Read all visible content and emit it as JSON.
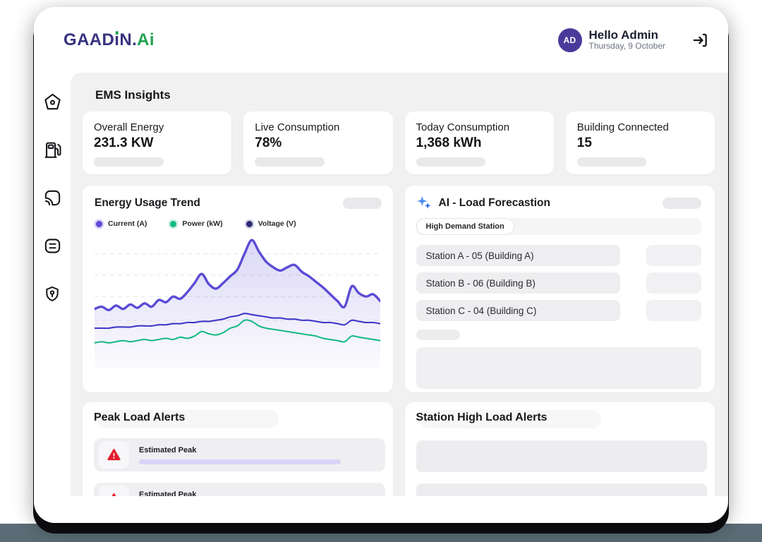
{
  "brand": {
    "parts": [
      "GAAD",
      "i",
      "N.",
      "Ai"
    ]
  },
  "header": {
    "avatar_initials": "AD",
    "greeting": "Hello Admin",
    "date": "Thursday, 9 October"
  },
  "sidebar": {
    "icons": [
      "home",
      "ev-charger",
      "cast",
      "checklist",
      "security"
    ]
  },
  "page_title": "EMS Insights",
  "stats": [
    {
      "label": "Overall Energy",
      "value": "231.3 KW"
    },
    {
      "label": "Live Consumption",
      "value": "78%"
    },
    {
      "label": "Today Consumption",
      "value": "1,368 kWh"
    },
    {
      "label": "Building Connected",
      "value": "15"
    }
  ],
  "chart_card": {
    "title": "Energy Usage Trend"
  },
  "chart_data": {
    "type": "area",
    "title": "Energy Usage Trend",
    "xlabel": "",
    "ylabel": "",
    "ylim": [
      0,
      100
    ],
    "axes_tick_labels_visible": false,
    "grid": "dashed-horizontal",
    "grid_levels": [
      86,
      67,
      48,
      27
    ],
    "legend_position": "top-left",
    "legend_items": [
      {
        "label": "Current (A)",
        "color": "#5b4bd5"
      },
      {
        "label": "Power (kW)",
        "color": "#10b981"
      },
      {
        "label": "Voltage (V)",
        "color": "#2e2a72"
      }
    ],
    "series": [
      {
        "name": "Current (A)",
        "color": "#5b4bd5",
        "fill": true,
        "values": [
          37,
          39,
          36,
          40,
          37,
          41,
          38,
          42,
          39,
          45,
          43,
          48,
          46,
          52,
          60,
          68,
          59,
          55,
          60,
          66,
          72,
          86,
          98,
          88,
          79,
          74,
          71,
          74,
          76,
          70,
          66,
          61,
          56,
          50,
          44,
          39,
          57,
          51,
          48,
          50,
          44
        ]
      },
      {
        "name": "Voltage (V)",
        "color": "#4038c7",
        "fill": false,
        "values": [
          20,
          20,
          20,
          21,
          21,
          21,
          22,
          22,
          22,
          23,
          23,
          24,
          24,
          25,
          25,
          26,
          26,
          27,
          28,
          30,
          31,
          33,
          32,
          31,
          30,
          29,
          29,
          28,
          28,
          27,
          27,
          26,
          25,
          25,
          24,
          23,
          27,
          26,
          25,
          25,
          24
        ]
      },
      {
        "name": "Power (kW)",
        "color": "#10b981",
        "fill": false,
        "values": [
          7,
          8,
          7,
          8,
          9,
          8,
          9,
          10,
          9,
          10,
          11,
          10,
          12,
          11,
          13,
          17,
          15,
          14,
          16,
          20,
          22,
          27,
          26,
          22,
          20,
          19,
          18,
          17,
          16,
          15,
          14,
          13,
          11,
          10,
          9,
          8,
          13,
          12,
          11,
          10,
          9
        ]
      }
    ]
  },
  "forecast": {
    "title": "AI - Load Forecastion",
    "chip": "High Demand Station",
    "stations": [
      "Station A - 05 (Building A)",
      "Station B - 06 (Building B)",
      "Station C - 04 (Building C)"
    ]
  },
  "peak_alerts": {
    "title": "Peak Load Alerts",
    "items": [
      {
        "label": "Estimated Peak"
      },
      {
        "label": "Estimated Peak"
      }
    ]
  },
  "station_alerts": {
    "title": "Station High Load Alerts"
  },
  "colors": {
    "logo_indigo": "#38327f",
    "logo_green": "#21a24e",
    "avatar_bg": "#4b3a9b",
    "panel_bg": "#f1f1f2",
    "skeleton": "#e9e9eb",
    "chart_current": "#5b4bd5",
    "chart_voltage": "#4038c7",
    "chart_power": "#10b981",
    "alert_red": "#e11d2b",
    "alert_bar_purple": "#d9d4f8",
    "sparkle_blue": "#3b82f6",
    "bottom_strip": "#5b6c76"
  }
}
